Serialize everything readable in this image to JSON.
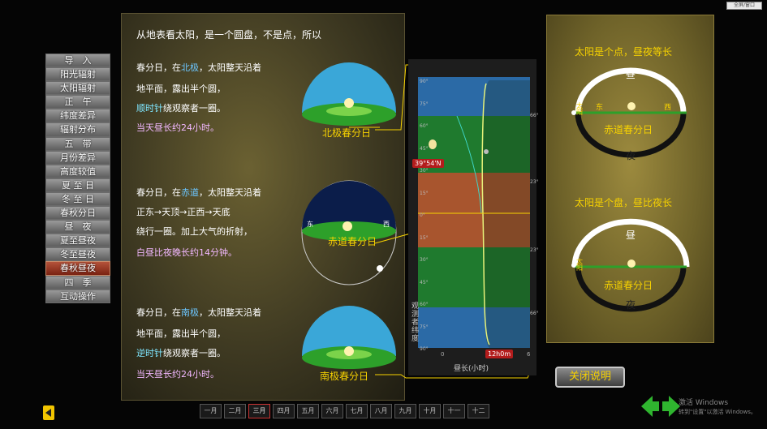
{
  "top_right_button": "全屏/窗口",
  "menu": {
    "items": [
      "导　入",
      "阳光辐射",
      "太阳辐射",
      "正　午",
      "纬度差异",
      "辐射分布",
      "五　带",
      "月份差异",
      "高度较值",
      "夏 至 日",
      "冬 至 日",
      "春秋分日",
      "昼　夜",
      "夏至昼夜",
      "冬至昼夜",
      "春秋昼夜",
      "四　季",
      "互动操作"
    ],
    "active_index": 15
  },
  "main": {
    "intro": "从地表看太阳，是一个圆盘，不是点，所以",
    "north": {
      "line1_a": "春分日，在",
      "line1_hl": "北极",
      "line1_b": "，太阳整天沿着",
      "line2": "地平面，露出半个圆，",
      "line3_hl": "顺时针",
      "line3_b": "绕观察者一圈。",
      "line4": "当天昼长约24小时。",
      "dome_label": "北极春分日"
    },
    "equator": {
      "line1_a": "春分日，在",
      "line1_hl": "赤道",
      "line1_b": "，太阳整天沿着",
      "line2": "正东→天顶→正西→天底",
      "line3": "绕行一圈。加上大气的折射，",
      "line4": "白昼比夜晚长约14分钟。",
      "dome_label": "赤道春分日",
      "east": "东",
      "west": "西"
    },
    "south": {
      "line1_a": "春分日，在",
      "line1_hl": "南极",
      "line1_b": "，太阳整天沿着",
      "line2": "地平面，露出半个圆，",
      "line3_hl": "逆时针",
      "line3_b": "绕观察者一圈。",
      "line4": "当天昼长约24小时。",
      "dome_label": "南极春分日"
    }
  },
  "chart": {
    "badge_lat": "39°54'N",
    "badge_time": "12h0m",
    "y_axis_label": "观测者纬度",
    "x_axis_label": "昼长(小时)",
    "tick_labels_left": [
      "90°",
      "75°",
      "60°",
      "45°",
      "30°",
      "15°",
      "0°",
      "15°",
      "30°",
      "45°",
      "60°",
      "75°",
      "90°"
    ],
    "tick_labels_right": [
      "66°",
      "23°",
      "23°",
      "66°"
    ],
    "x_ticks": [
      "0",
      "6"
    ]
  },
  "right": {
    "top_title": "太阳是个点，昼夜等长",
    "top_day": "昼",
    "top_night": "夜",
    "top_sun": "太阳",
    "top_east": "东",
    "top_west": "西",
    "top_label": "赤道春分日",
    "bottom_title": "太阳是个盘，昼比夜长",
    "bottom_day": "昼",
    "bottom_night": "夜",
    "bottom_sun": "太阳",
    "bottom_label": "赤道春分日"
  },
  "close_button": "关闭说明",
  "months": [
    "一月",
    "二月",
    "三月",
    "四月",
    "五月",
    "六月",
    "七月",
    "八月",
    "九月",
    "十月",
    "十一",
    "十二"
  ],
  "current_month_index": 2,
  "watermark_line1": "激活 Windows",
  "watermark_line2": "转到\"设置\"以激活 Windows。"
}
